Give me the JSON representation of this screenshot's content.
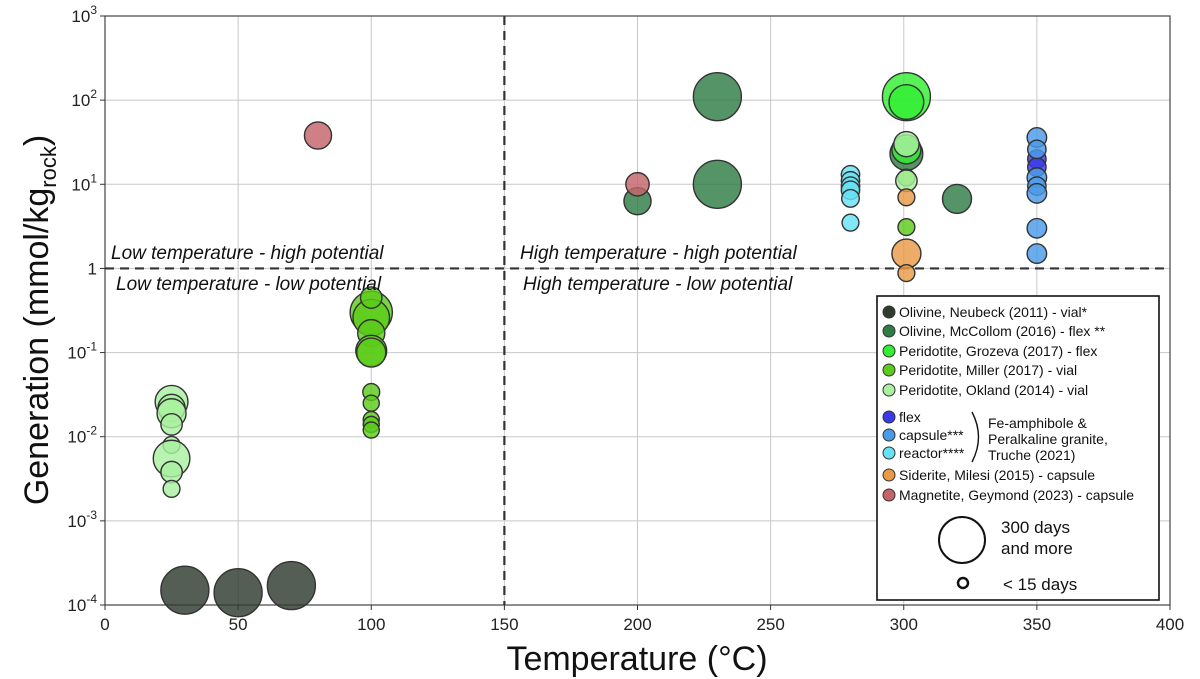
{
  "chart_data": {
    "type": "scatter",
    "xlabel": "Temperature (°C)",
    "ylabel_prefix": "Generation (mmol/kg",
    "ylabel_sub": "rock",
    "ylabel_suffix": ")",
    "xlim": [
      0,
      400
    ],
    "ylim_log10": [
      -4,
      3
    ],
    "x_ticks": [
      "0",
      "50",
      "100",
      "150",
      "200",
      "250",
      "300",
      "350",
      "400"
    ],
    "y_ticks": [
      {
        "base": "10",
        "exp": "-4"
      },
      {
        "base": "10",
        "exp": "-3"
      },
      {
        "base": "10",
        "exp": "-2"
      },
      {
        "base": "10",
        "exp": "-1"
      },
      {
        "base": "",
        "exp": "1"
      },
      {
        "base": "10",
        "exp": "1"
      },
      {
        "base": "10",
        "exp": "2"
      },
      {
        "base": "10",
        "exp": "3"
      }
    ],
    "grid": true,
    "thresholds": {
      "temperature": 150,
      "generation": 1
    },
    "quadrant_labels": {
      "low_high": "Low temperature - high potential",
      "low_low": "Low temperature - low potential",
      "high_high": "High temperature - high potential",
      "high_low": "High temperature - low potential"
    },
    "size_legend": {
      "large": [
        "300 days",
        "and more"
      ],
      "small": "< 15 days"
    },
    "bracket_group_label": [
      "Fe-amphibole &",
      "Peralkaline granite,",
      "Truche (2021)"
    ],
    "legend_position": "bottom-right",
    "series": [
      {
        "name": "Olivine, Neubeck (2011) - vial*",
        "color": "#2f3b2f",
        "points": [
          {
            "x": 30,
            "y": 0.00015,
            "size": 1.0
          },
          {
            "x": 50,
            "y": 0.00014,
            "size": 1.0
          },
          {
            "x": 70,
            "y": 0.00017,
            "size": 1.0
          }
        ]
      },
      {
        "name": "Olivine, McCollom (2016) - flex **",
        "color": "#2e7d46",
        "points": [
          {
            "x": 200,
            "y": 6.3,
            "size": 0.45
          },
          {
            "x": 230,
            "y": 110,
            "size": 1.0
          },
          {
            "x": 230,
            "y": 10,
            "size": 1.0
          },
          {
            "x": 301,
            "y": 23,
            "size": 0.6
          },
          {
            "x": 320,
            "y": 6.7,
            "size": 0.5
          }
        ]
      },
      {
        "name": "Peridotite, Grozeva (2017) - flex",
        "color": "#33ee33",
        "points": [
          {
            "x": 301,
            "y": 110,
            "size": 1.0
          },
          {
            "x": 301,
            "y": 95,
            "size": 0.65
          },
          {
            "x": 301,
            "y": 26,
            "size": 0.5
          }
        ]
      },
      {
        "name": "Peridotite, Miller (2017) - vial",
        "color": "#5ccc1a",
        "points": [
          {
            "x": 100,
            "y": 0.3,
            "size": 0.85
          },
          {
            "x": 100,
            "y": 0.26,
            "size": 0.7
          },
          {
            "x": 100,
            "y": 0.45,
            "size": 0.3
          },
          {
            "x": 100,
            "y": 0.17,
            "size": 0.45
          },
          {
            "x": 100,
            "y": 0.105,
            "size": 0.55
          },
          {
            "x": 100,
            "y": 0.1,
            "size": 0.5
          },
          {
            "x": 100,
            "y": 0.034,
            "size": 0.18
          },
          {
            "x": 100,
            "y": 0.025,
            "size": 0.16
          },
          {
            "x": 100,
            "y": 0.016,
            "size": 0.16
          },
          {
            "x": 100,
            "y": 0.014,
            "size": 0.16
          },
          {
            "x": 100,
            "y": 0.012,
            "size": 0.16
          },
          {
            "x": 301,
            "y": 12,
            "size": 0.18
          },
          {
            "x": 301,
            "y": 3.1,
            "size": 0.18
          }
        ]
      },
      {
        "name": "Peridotite, Okland (2014) - vial",
        "color": "#aaf0a0",
        "points": [
          {
            "x": 25,
            "y": 0.026,
            "size": 0.6
          },
          {
            "x": 25,
            "y": 0.022,
            "size": 0.45
          },
          {
            "x": 25,
            "y": 0.019,
            "size": 0.5
          },
          {
            "x": 25,
            "y": 0.014,
            "size": 0.3
          },
          {
            "x": 25,
            "y": 0.008,
            "size": 0.18
          },
          {
            "x": 25,
            "y": 0.0055,
            "size": 0.7
          },
          {
            "x": 25,
            "y": 0.0038,
            "size": 0.3
          },
          {
            "x": 25,
            "y": 0.0024,
            "size": 0.18
          },
          {
            "x": 301,
            "y": 30,
            "size": 0.4
          },
          {
            "x": 301,
            "y": 11,
            "size": 0.3
          }
        ]
      },
      {
        "name": "flex",
        "color": "#3a3ae8",
        "points": [
          {
            "x": 350,
            "y": 20,
            "size": 0.22
          },
          {
            "x": 350,
            "y": 16,
            "size": 0.22
          }
        ]
      },
      {
        "name": "capsule***",
        "color": "#4a9ae8",
        "points": [
          {
            "x": 350,
            "y": 36,
            "size": 0.25
          },
          {
            "x": 350,
            "y": 26,
            "size": 0.22
          },
          {
            "x": 350,
            "y": 12,
            "size": 0.25
          },
          {
            "x": 350,
            "y": 9.5,
            "size": 0.22
          },
          {
            "x": 350,
            "y": 7.8,
            "size": 0.25
          },
          {
            "x": 350,
            "y": 3.0,
            "size": 0.25
          },
          {
            "x": 350,
            "y": 1.5,
            "size": 0.25
          }
        ]
      },
      {
        "name": "reactor****",
        "color": "#66e2f4",
        "points": [
          {
            "x": 280,
            "y": 13,
            "size": 0.22
          },
          {
            "x": 280,
            "y": 11,
            "size": 0.22
          },
          {
            "x": 280,
            "y": 9.5,
            "size": 0.22
          },
          {
            "x": 280,
            "y": 8.5,
            "size": 0.22
          },
          {
            "x": 280,
            "y": 6.8,
            "size": 0.2
          },
          {
            "x": 280,
            "y": 3.5,
            "size": 0.18
          }
        ]
      },
      {
        "name": "Siderite, Milesi (2015) - capsule",
        "color": "#e99a45",
        "points": [
          {
            "x": 301,
            "y": 1.5,
            "size": 0.5
          },
          {
            "x": 301,
            "y": 7,
            "size": 0.18
          },
          {
            "x": 301,
            "y": 0.88,
            "size": 0.18
          }
        ]
      },
      {
        "name": "Magnetite, Geymond (2023) - capsule",
        "color": "#c4646a",
        "points": [
          {
            "x": 80,
            "y": 38,
            "size": 0.45
          },
          {
            "x": 200,
            "y": 10,
            "size": 0.35
          }
        ]
      }
    ]
  }
}
